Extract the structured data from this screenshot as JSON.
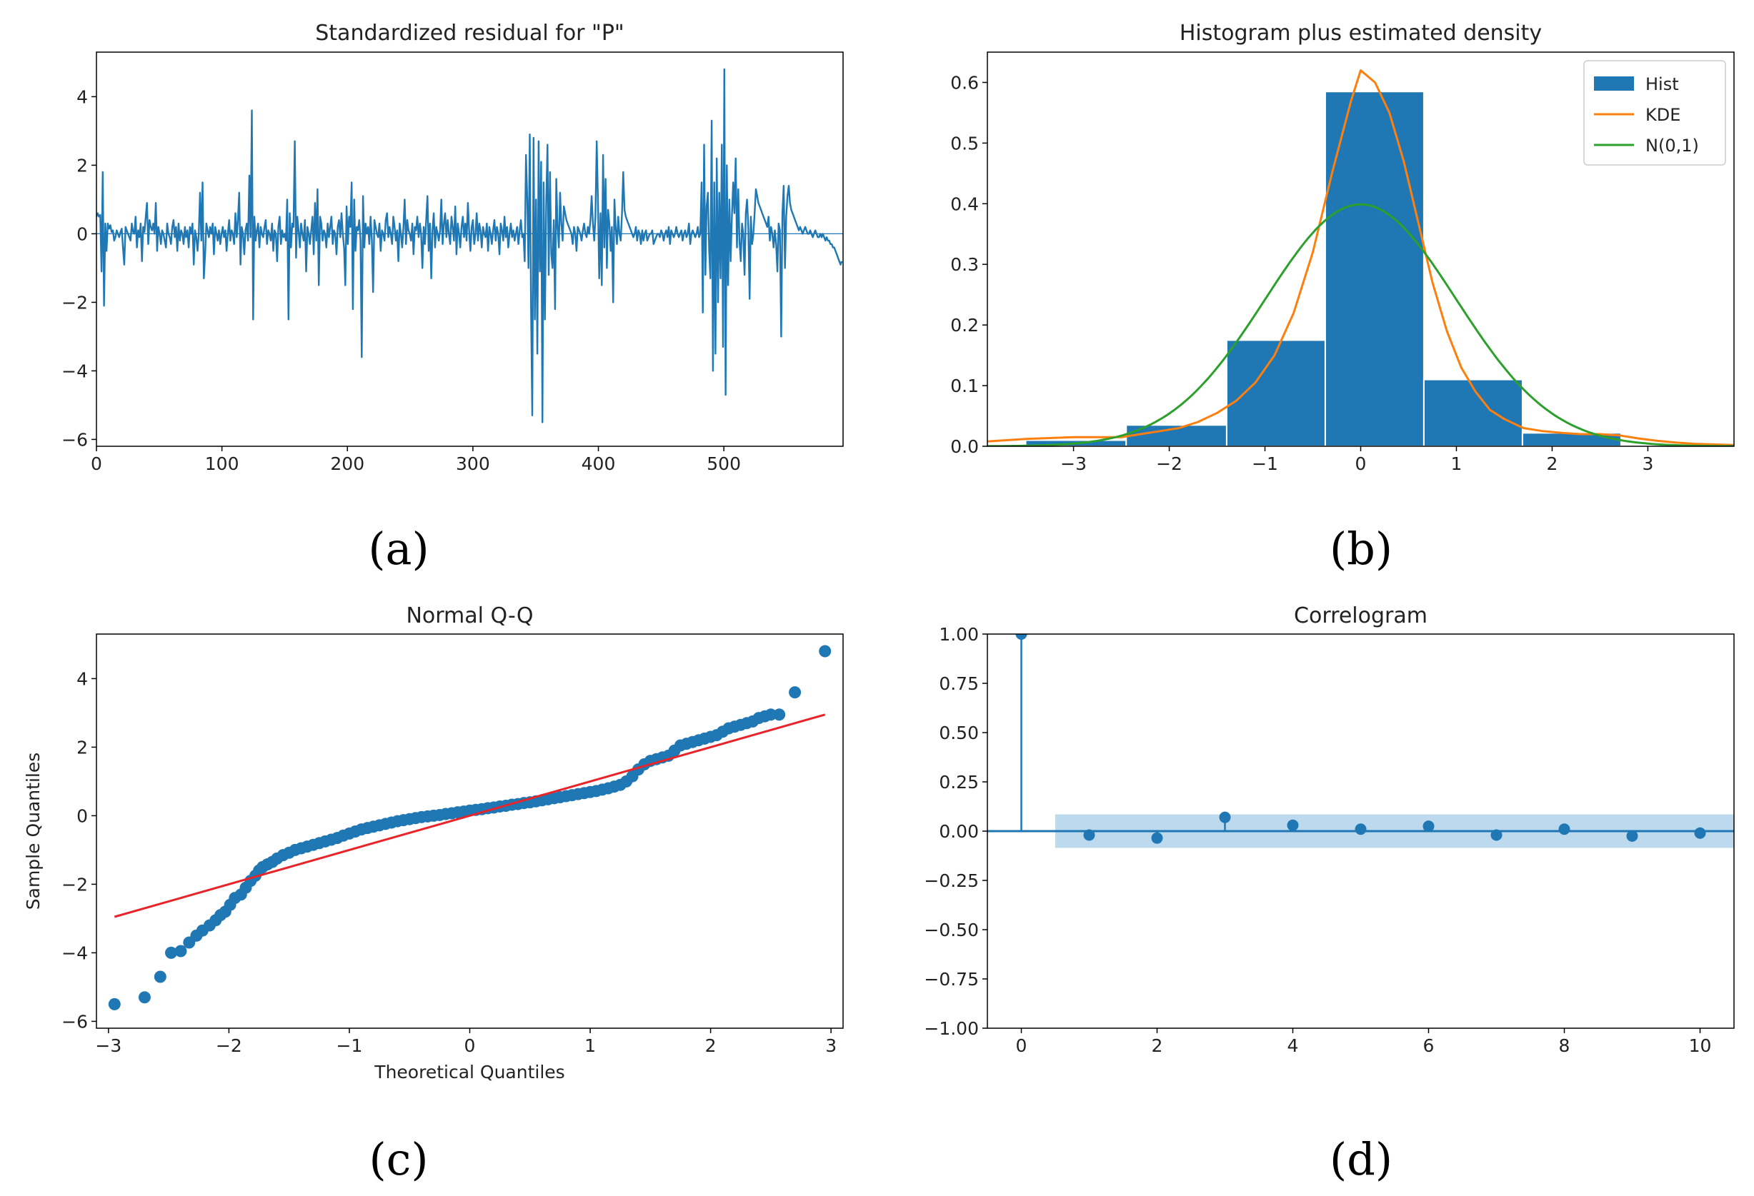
{
  "colors": {
    "blue": "#1f77b4",
    "orange": "#ff7f0e",
    "green": "#2ca02c",
    "red": "#e8242a",
    "blue_band": "#a6cce8"
  },
  "chart_data": [
    {
      "id": "a",
      "type": "line",
      "title": "Standardized residual for \"P\"",
      "panel_label": "(a)",
      "xlim": [
        0,
        595
      ],
      "ylim": [
        -6.2,
        5.3
      ],
      "xticks": [
        0,
        100,
        200,
        300,
        400,
        500
      ],
      "yticks": [
        -6,
        -4,
        -2,
        0,
        2,
        4
      ],
      "grid": false,
      "zero_line": 0,
      "series": [
        {
          "values_approx": [
            0.5,
            0.6,
            0.5,
            0.55,
            -1.1,
            1.8,
            -2.1,
            0.3,
            -0.5,
            0.3,
            0.15,
            0.25,
            0.05,
            0.1,
            -0.2,
            -0.1,
            0.1,
            0.0,
            -0.1,
            0.05,
            0.15,
            -0.4,
            -0.9,
            0.2,
            0.1,
            0.0,
            -0.1,
            -0.2,
            0.3,
            0.05,
            0.0,
            0.5,
            -0.4,
            0.1,
            -0.1,
            0.3,
            -0.8,
            0.2,
            0.05,
            0.5,
            0.9,
            -0.3,
            0.4,
            0.2,
            0.1,
            0.3,
            0.0,
            0.9,
            -0.5,
            0.2,
            0.0,
            -0.3,
            0.1,
            0.0,
            -0.2,
            -0.4,
            0.3,
            0.0,
            -0.1,
            -0.3,
            0.2,
            0.4,
            -0.1,
            0.2,
            -0.5,
            0.3,
            -0.2,
            0.1,
            0.0,
            -0.3,
            0.2,
            -0.1,
            0.1,
            -0.4,
            0.2,
            0.0,
            0.3,
            -0.9,
            0.1,
            -0.1,
            -0.5,
            0.0,
            1.2,
            -0.2,
            1.5,
            -1.3,
            -0.6,
            0.3,
            0.1,
            -0.1,
            0.2,
            0.0,
            0.3,
            -0.6,
            0.2,
            0.0,
            -0.2,
            0.1,
            -0.3,
            0.0,
            0.2,
            -0.1,
            0.1,
            -0.5,
            0.0,
            0.4,
            -0.2,
            0.1,
            0.0,
            -0.3,
            0.6,
            -0.1,
            0.4,
            1.2,
            -0.9,
            0.2,
            0.0,
            -0.6,
            0.1,
            0.3,
            -0.2,
            1.7,
            -0.1,
            3.6,
            -2.5,
            0.5,
            -0.2,
            0.1,
            0.3,
            -0.4,
            0.2,
            0.0,
            -0.1,
            0.2,
            0.4,
            -0.3,
            0.1,
            0.0,
            -0.2,
            0.3,
            -0.5,
            0.1,
            0.0,
            -0.8,
            0.2,
            0.5,
            -0.3,
            0.1,
            -0.1,
            0.0,
            -0.2,
            1.0,
            -2.5,
            0.6,
            -0.4,
            0.3,
            0.2,
            2.7,
            -0.7,
            0.5,
            0.1,
            -0.4,
            0.3,
            0.0,
            -0.2,
            0.4,
            -1.1,
            0.2,
            0.0,
            -0.3,
            0.1,
            0.5,
            -0.6,
            0.9,
            -0.2,
            1.3,
            -1.5,
            0.5,
            0.3,
            -0.2,
            0.1,
            0.0,
            -0.4,
            0.3,
            -0.1,
            0.2,
            0.5,
            -0.3,
            0.1,
            0.0,
            -0.6,
            0.2,
            0.4,
            -0.1,
            0.6,
            0.0,
            -0.4,
            -1.5,
            0.8,
            -0.3,
            0.5,
            0.2,
            1.5,
            -2.2,
            1.0,
            -0.5,
            0.2,
            0.1,
            0.4,
            -0.2,
            -3.6,
            1.1,
            -0.4,
            0.3,
            0.0,
            0.2,
            -0.3,
            0.5,
            -0.2,
            -1.7,
            0.4,
            0.2,
            0.0,
            -0.1,
            0.3,
            -0.5,
            0.1,
            0.0,
            -0.2,
            0.4,
            0.6,
            -0.1,
            0.2,
            0.0,
            -0.3,
            0.5,
            0.2,
            -0.2,
            0.1,
            -0.8,
            0.3,
            0.0,
            -0.4,
            0.2,
            1.0,
            -0.3,
            0.4,
            0.1,
            0.0,
            -0.2,
            0.3,
            -0.6,
            0.2,
            0.1,
            0.5,
            -0.1,
            0.3,
            0.0,
            -1.0,
            0.2,
            -0.3,
            0.4,
            1.1,
            -0.5,
            0.3,
            -1.3,
            0.1,
            0.6,
            -0.4,
            0.2,
            0.0,
            -0.2,
            0.1,
            1.0,
            -0.3,
            0.3,
            0.6,
            -0.1,
            0.4,
            0.0,
            -0.3,
            0.5,
            0.2,
            -0.2,
            0.8,
            -0.6,
            0.3,
            0.0,
            -0.4,
            0.2,
            0.5,
            -0.1,
            0.3,
            -0.2,
            0.9,
            0.1,
            -0.5,
            0.2,
            0.4,
            -0.3,
            0.0,
            0.6,
            -0.2,
            0.3,
            0.1,
            -0.4,
            0.2,
            0.0,
            -0.1,
            0.3,
            -0.5,
            0.2,
            0.0,
            -0.3,
            0.1,
            0.4,
            -0.2,
            0.2,
            0.0,
            -0.6,
            0.3,
            0.1,
            -0.2,
            0.5,
            -0.1,
            0.2,
            -0.4,
            0.0,
            0.3,
            -0.1,
            0.1,
            -0.2,
            0.0,
            0.2,
            -0.3,
            0.1,
            0.4,
            -0.1,
            0.0,
            -0.8,
            2.3,
            1.0,
            -1.0,
            2.9,
            -2.2,
            -5.3,
            2.8,
            -2.5,
            1.0,
            -3.5,
            2.7,
            -1.1,
            2.1,
            -5.5,
            1.5,
            -2.5,
            0.9,
            2.6,
            -1.2,
            1.8,
            -0.6,
            -1.0,
            0.4,
            -2.2,
            1.6,
            0.2,
            -0.4,
            1.2,
            0.3,
            -0.2,
            0.8,
            0.6,
            0.4,
            0.3,
            0.2,
            0.1,
            0.0,
            -0.3,
            0.2,
            0.0,
            -0.5,
            0.2,
            0.1,
            0.0,
            -0.2,
            0.1,
            0.3,
            0.0,
            -0.1,
            0.2,
            0.0,
            0.4,
            1.1,
            0.3,
            -0.2,
            0.5,
            2.7,
            0.9,
            -1.3,
            0.6,
            -1.5,
            2.3,
            -0.4,
            1.6,
            -1.0,
            0.7,
            0.3,
            -0.5,
            0.2,
            -2.0,
            1.0,
            0.2,
            -0.3,
            0.5,
            0.0,
            -0.2,
            0.6,
            1.8,
            0.7,
            0.5,
            0.4,
            0.3,
            0.2,
            0.1,
            0.0,
            -0.1,
            0.0,
            0.2,
            -0.2,
            0.1,
            0.0,
            -0.3,
            0.1,
            -0.2,
            0.0,
            0.1,
            -0.2,
            -0.1,
            0.0,
            0.0,
            0.1,
            -0.3,
            -0.2,
            -0.1,
            0.0,
            0.0,
            -0.1,
            0.1,
            0.0,
            -0.2,
            0.0,
            0.1,
            -0.1,
            0.2,
            -0.3,
            0.1,
            0.0,
            -0.1,
            0.0,
            0.2,
            0.0,
            -0.1,
            0.0,
            0.1,
            -0.2,
            0.0,
            0.1,
            -0.1,
            0.0,
            0.3,
            -0.3,
            0.0,
            0.1,
            0.0,
            -0.1,
            0.0,
            0.2,
            -0.1,
            0.0,
            1.5,
            -2.3,
            2.6,
            -1.2,
            0.8,
            1.2,
            -0.5,
            -1.3,
            3.3,
            -4.0,
            1.5,
            -3.5,
            2.2,
            -2.0,
            1.2,
            -1.3,
            2.6,
            -3.3,
            4.8,
            -4.7,
            2.0,
            -1.5,
            1.0,
            -0.8,
            0.5,
            1.5,
            0.6,
            2.2,
            -0.4,
            1.3,
            -0.2,
            -0.8,
            0.3,
            0.0,
            -1.2,
            0.6,
            1.0,
            0.2,
            -1.9,
            0.5,
            -0.3,
            0.0,
            0.6,
            1.3,
            1.1,
            0.9,
            0.8,
            0.7,
            0.6,
            0.5,
            0.4,
            0.3,
            0.2,
            0.5,
            -0.2,
            0.2,
            0.0,
            -0.4,
            0.1,
            -0.3,
            -1.1,
            0.3,
            0.1,
            -3.0,
            0.6,
            1.4,
            -1.0,
            0.5,
            1.1,
            1.4,
            0.9,
            0.7,
            0.6,
            0.5,
            0.4,
            0.3,
            0.2,
            0.1,
            0.2,
            0.1,
            0.0,
            0.1,
            0.2,
            0.1,
            0.0,
            0.0,
            0.1,
            0.0,
            -0.1,
            0.0,
            0.1,
            0.0,
            -0.1,
            -0.1,
            0.0,
            -0.1,
            0.0,
            -0.1,
            -0.2,
            -0.1,
            -0.2,
            -0.2,
            -0.3,
            -0.3,
            -0.4,
            -0.4,
            -0.5,
            -0.6,
            -0.7,
            -0.8,
            -0.9,
            -0.8
          ]
        }
      ]
    },
    {
      "id": "b",
      "type": "bar",
      "title": "Histogram plus estimated density",
      "panel_label": "(b)",
      "xlim": [
        -3.9,
        3.9
      ],
      "ylim": [
        0,
        0.65
      ],
      "xticks": [
        -3,
        -2,
        -1,
        0,
        1,
        2,
        3
      ],
      "yticks": [
        0.0,
        0.1,
        0.2,
        0.3,
        0.4,
        0.5,
        0.6
      ],
      "legend": {
        "position": "top-right",
        "entries": [
          "Hist",
          "KDE",
          "N(0,1)"
        ]
      },
      "hist_edges": [
        -3.5,
        -2.45,
        -1.4,
        -0.37,
        0.66,
        1.69,
        2.72
      ],
      "hist_values": [
        0.01,
        0.035,
        0.175,
        0.585,
        0.11,
        0.022
      ],
      "kde": {
        "x": [
          -3.9,
          -3.5,
          -3.0,
          -2.7,
          -2.5,
          -2.3,
          -2.1,
          -1.9,
          -1.7,
          -1.5,
          -1.3,
          -1.1,
          -0.9,
          -0.7,
          -0.5,
          -0.3,
          -0.1,
          0.0,
          0.15,
          0.3,
          0.45,
          0.6,
          0.75,
          0.9,
          1.05,
          1.2,
          1.35,
          1.5,
          1.7,
          1.9,
          2.1,
          2.3,
          2.5,
          2.7,
          2.9,
          3.1,
          3.3,
          3.5,
          3.9
        ],
        "y": [
          0.008,
          0.012,
          0.015,
          0.015,
          0.015,
          0.02,
          0.025,
          0.03,
          0.04,
          0.055,
          0.075,
          0.105,
          0.15,
          0.22,
          0.32,
          0.45,
          0.57,
          0.62,
          0.6,
          0.55,
          0.47,
          0.37,
          0.27,
          0.19,
          0.13,
          0.09,
          0.06,
          0.045,
          0.03,
          0.025,
          0.022,
          0.02,
          0.02,
          0.018,
          0.013,
          0.009,
          0.006,
          0.004,
          0.002
        ]
      },
      "normal_curve": "N(0,1) pdf"
    },
    {
      "id": "c",
      "type": "scatter",
      "title": "Normal Q-Q",
      "panel_label": "(c)",
      "xlabel": "Theoretical Quantiles",
      "ylabel": "Sample Quantiles",
      "xlim": [
        -3.1,
        3.1
      ],
      "ylim": [
        -6.2,
        5.3
      ],
      "xticks": [
        -3,
        -2,
        -1,
        0,
        1,
        2,
        3
      ],
      "yticks": [
        -6,
        -4,
        -2,
        0,
        2,
        4
      ],
      "reference_line": {
        "x": [
          -2.95,
          2.95
        ],
        "y": [
          -2.95,
          2.95
        ]
      },
      "points": {
        "x": [
          -2.95,
          -2.7,
          -2.57,
          -2.48,
          -2.4,
          -2.33,
          -2.27,
          -2.22,
          -2.16,
          -2.11,
          -2.07,
          -2.03,
          -1.99,
          -1.95,
          -1.9,
          -1.86,
          -1.82,
          -1.78,
          -1.75,
          -1.72,
          -1.68,
          -1.64,
          -1.6,
          -1.55,
          -1.5,
          -1.45,
          -1.4,
          -1.35,
          -1.3,
          -1.25,
          -1.2,
          -1.15,
          -1.1,
          -1.05,
          -1.0,
          -0.95,
          -0.9,
          -0.85,
          -0.8,
          -0.75,
          -0.7,
          -0.65,
          -0.6,
          -0.55,
          -0.5,
          -0.45,
          -0.4,
          -0.35,
          -0.3,
          -0.25,
          -0.2,
          -0.15,
          -0.1,
          -0.05,
          0.0,
          0.05,
          0.1,
          0.15,
          0.2,
          0.25,
          0.3,
          0.35,
          0.4,
          0.45,
          0.5,
          0.55,
          0.6,
          0.65,
          0.7,
          0.75,
          0.8,
          0.85,
          0.9,
          0.95,
          1.0,
          1.05,
          1.1,
          1.15,
          1.2,
          1.25,
          1.3,
          1.35,
          1.4,
          1.45,
          1.5,
          1.55,
          1.6,
          1.65,
          1.7,
          1.75,
          1.8,
          1.85,
          1.9,
          1.95,
          2.0,
          2.05,
          2.1,
          2.15,
          2.2,
          2.25,
          2.3,
          2.35,
          2.4,
          2.45,
          2.5,
          2.57,
          2.7,
          2.95
        ],
        "y": [
          -5.5,
          -5.3,
          -4.7,
          -4.0,
          -3.95,
          -3.7,
          -3.5,
          -3.35,
          -3.2,
          -3.05,
          -2.9,
          -2.8,
          -2.6,
          -2.4,
          -2.3,
          -2.1,
          -1.9,
          -1.75,
          -1.6,
          -1.5,
          -1.42,
          -1.35,
          -1.25,
          -1.15,
          -1.08,
          -1.0,
          -0.95,
          -0.9,
          -0.85,
          -0.8,
          -0.75,
          -0.7,
          -0.65,
          -0.58,
          -0.52,
          -0.46,
          -0.4,
          -0.36,
          -0.32,
          -0.28,
          -0.24,
          -0.2,
          -0.16,
          -0.13,
          -0.1,
          -0.07,
          -0.04,
          -0.02,
          0.0,
          0.02,
          0.05,
          0.07,
          0.1,
          0.12,
          0.15,
          0.17,
          0.19,
          0.22,
          0.24,
          0.27,
          0.29,
          0.32,
          0.34,
          0.37,
          0.39,
          0.42,
          0.45,
          0.48,
          0.51,
          0.54,
          0.57,
          0.6,
          0.63,
          0.66,
          0.69,
          0.72,
          0.76,
          0.8,
          0.85,
          0.9,
          1.0,
          1.15,
          1.35,
          1.5,
          1.6,
          1.65,
          1.7,
          1.75,
          1.9,
          2.05,
          2.1,
          2.15,
          2.2,
          2.25,
          2.3,
          2.35,
          2.45,
          2.55,
          2.6,
          2.65,
          2.7,
          2.75,
          2.85,
          2.9,
          2.95,
          2.95,
          3.6,
          4.8
        ]
      }
    },
    {
      "id": "d",
      "type": "stem",
      "title": "Correlogram",
      "panel_label": "(d)",
      "xlim": [
        -0.5,
        10.5
      ],
      "ylim": [
        -1.0,
        1.0
      ],
      "xticks": [
        0,
        2,
        4,
        6,
        8,
        10
      ],
      "yticks": [
        -1.0,
        -0.75,
        -0.5,
        -0.25,
        0.0,
        0.25,
        0.5,
        0.75,
        1.0
      ],
      "ytick_labels": [
        "−1.00",
        "−0.75",
        "−0.50",
        "−0.25",
        "0.00",
        "0.25",
        "0.50",
        "0.75",
        "1.00"
      ],
      "lags": [
        0,
        1,
        2,
        3,
        4,
        5,
        6,
        7,
        8,
        9,
        10
      ],
      "acf": [
        1.0,
        -0.02,
        -0.035,
        0.07,
        0.03,
        0.01,
        0.025,
        -0.02,
        0.01,
        -0.025,
        -0.01
      ],
      "confidence_band": {
        "x": [
          0.5,
          10.5
        ],
        "upper": 0.085,
        "lower": -0.085
      }
    }
  ]
}
